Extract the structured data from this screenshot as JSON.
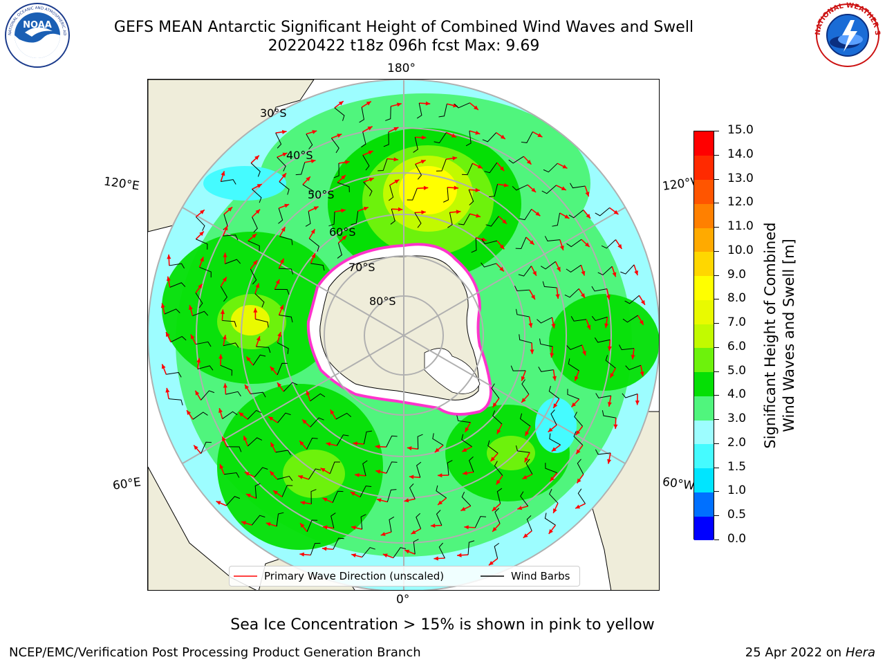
{
  "title": {
    "line1": "GEFS MEAN Antarctic Significant Height of Combined Wind Waves and Swell",
    "line2": "20220422 t18z 096h fcst   Max: 9.69"
  },
  "logos": {
    "left": "NOAA",
    "right": "NATIONAL WEATHER SERVICE"
  },
  "map": {
    "projection": "south polar stereographic",
    "longitude_labels": {
      "top": "180°",
      "bottom": "0°",
      "left_upper": "120°E",
      "left_lower": "60°E",
      "right_upper": "120°W",
      "right_lower": "60°W"
    },
    "latitude_labels": [
      "30°S",
      "40°S",
      "50°S",
      "60°S",
      "70°S",
      "80°S"
    ]
  },
  "legend": {
    "wave_direction": "Primary Wave Direction (unscaled)",
    "wind_barbs": "Wind Barbs"
  },
  "colorbar": {
    "title_line1": "Significant Height of Combined",
    "title_line2": "Wind Waves and Swell [m]",
    "tick_labels": [
      "0.0",
      "0.5",
      "1.0",
      "1.5",
      "2.0",
      "3.0",
      "4.0",
      "5.0",
      "6.0",
      "7.0",
      "8.0",
      "9.0",
      "10.0",
      "11.0",
      "12.0",
      "13.0",
      "14.0",
      "15.0"
    ],
    "colors": [
      "#0000ff",
      "#0070ff",
      "#00e5ff",
      "#45fbff",
      "#9dfdff",
      "#50f57d",
      "#05df05",
      "#6df20c",
      "#c2fa00",
      "#e9fa00",
      "#ffff00",
      "#ffd700",
      "#ffaa00",
      "#ff8000",
      "#ff5500",
      "#ff2a00",
      "#ff0000"
    ]
  },
  "footer": {
    "sea_ice_note": "Sea Ice Concentration > 15% is shown in pink to yellow",
    "credit": "NCEP/EMC/Verification Post Processing Product Generation Branch",
    "date_prefix": "25 Apr 2022 on ",
    "machine": "Hera"
  },
  "colors": {
    "land": "#efedda",
    "ice": "#ffffff",
    "sea_ice_edge": "#ff33cc",
    "wave_arrow": "#ff0000",
    "wind_barb": "#000000",
    "grid": "#b0b0b0"
  }
}
